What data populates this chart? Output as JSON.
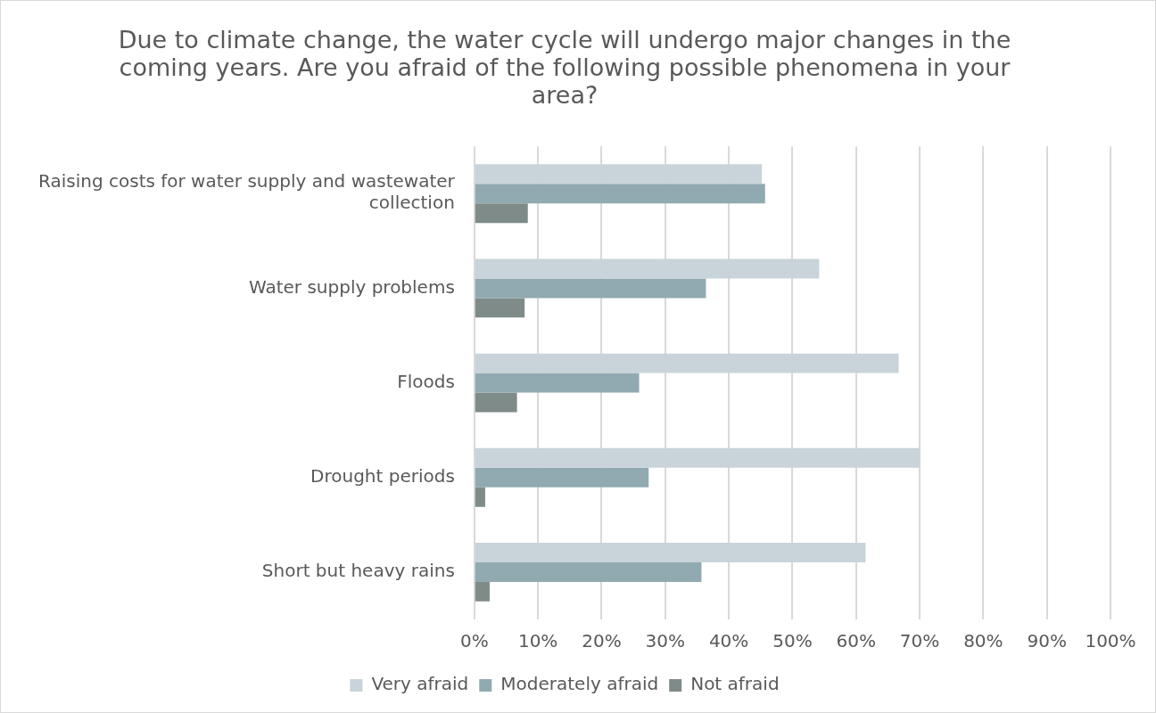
{
  "chart_data": {
    "type": "bar",
    "orientation": "horizontal",
    "title": "Due to climate change, the water cycle will undergo major changes in the coming years. Are you afraid of the following possible phenomena in your area?",
    "categories": [
      "Raising costs for water supply and wastewater collection",
      "Water supply problems",
      "Floods",
      "Drought periods",
      "Short but heavy rains"
    ],
    "series": [
      {
        "name": "Very afraid",
        "color": "#c8d4d9",
        "values": [
          45.2,
          54.2,
          66.7,
          70.0,
          61.5
        ]
      },
      {
        "name": "Moderately afraid",
        "color": "#91aab1",
        "values": [
          45.7,
          36.4,
          25.9,
          27.4,
          35.7
        ]
      },
      {
        "name": "Not afraid",
        "color": "#7f8b89",
        "values": [
          8.4,
          7.9,
          6.7,
          1.7,
          2.4
        ]
      }
    ],
    "xlim": [
      0,
      100
    ],
    "xticks": [
      {
        "value": 0,
        "label": "0%"
      },
      {
        "value": 10,
        "label": "10%"
      },
      {
        "value": 20,
        "label": "20%"
      },
      {
        "value": 30,
        "label": "30%"
      },
      {
        "value": 40,
        "label": "40%"
      },
      {
        "value": 50,
        "label": "50%"
      },
      {
        "value": 60,
        "label": "60%"
      },
      {
        "value": 70,
        "label": "70%"
      },
      {
        "value": 80,
        "label": "80%"
      },
      {
        "value": 90,
        "label": "90%"
      },
      {
        "value": 100,
        "label": "100%"
      }
    ],
    "grid": "x",
    "legend": "bottom"
  }
}
